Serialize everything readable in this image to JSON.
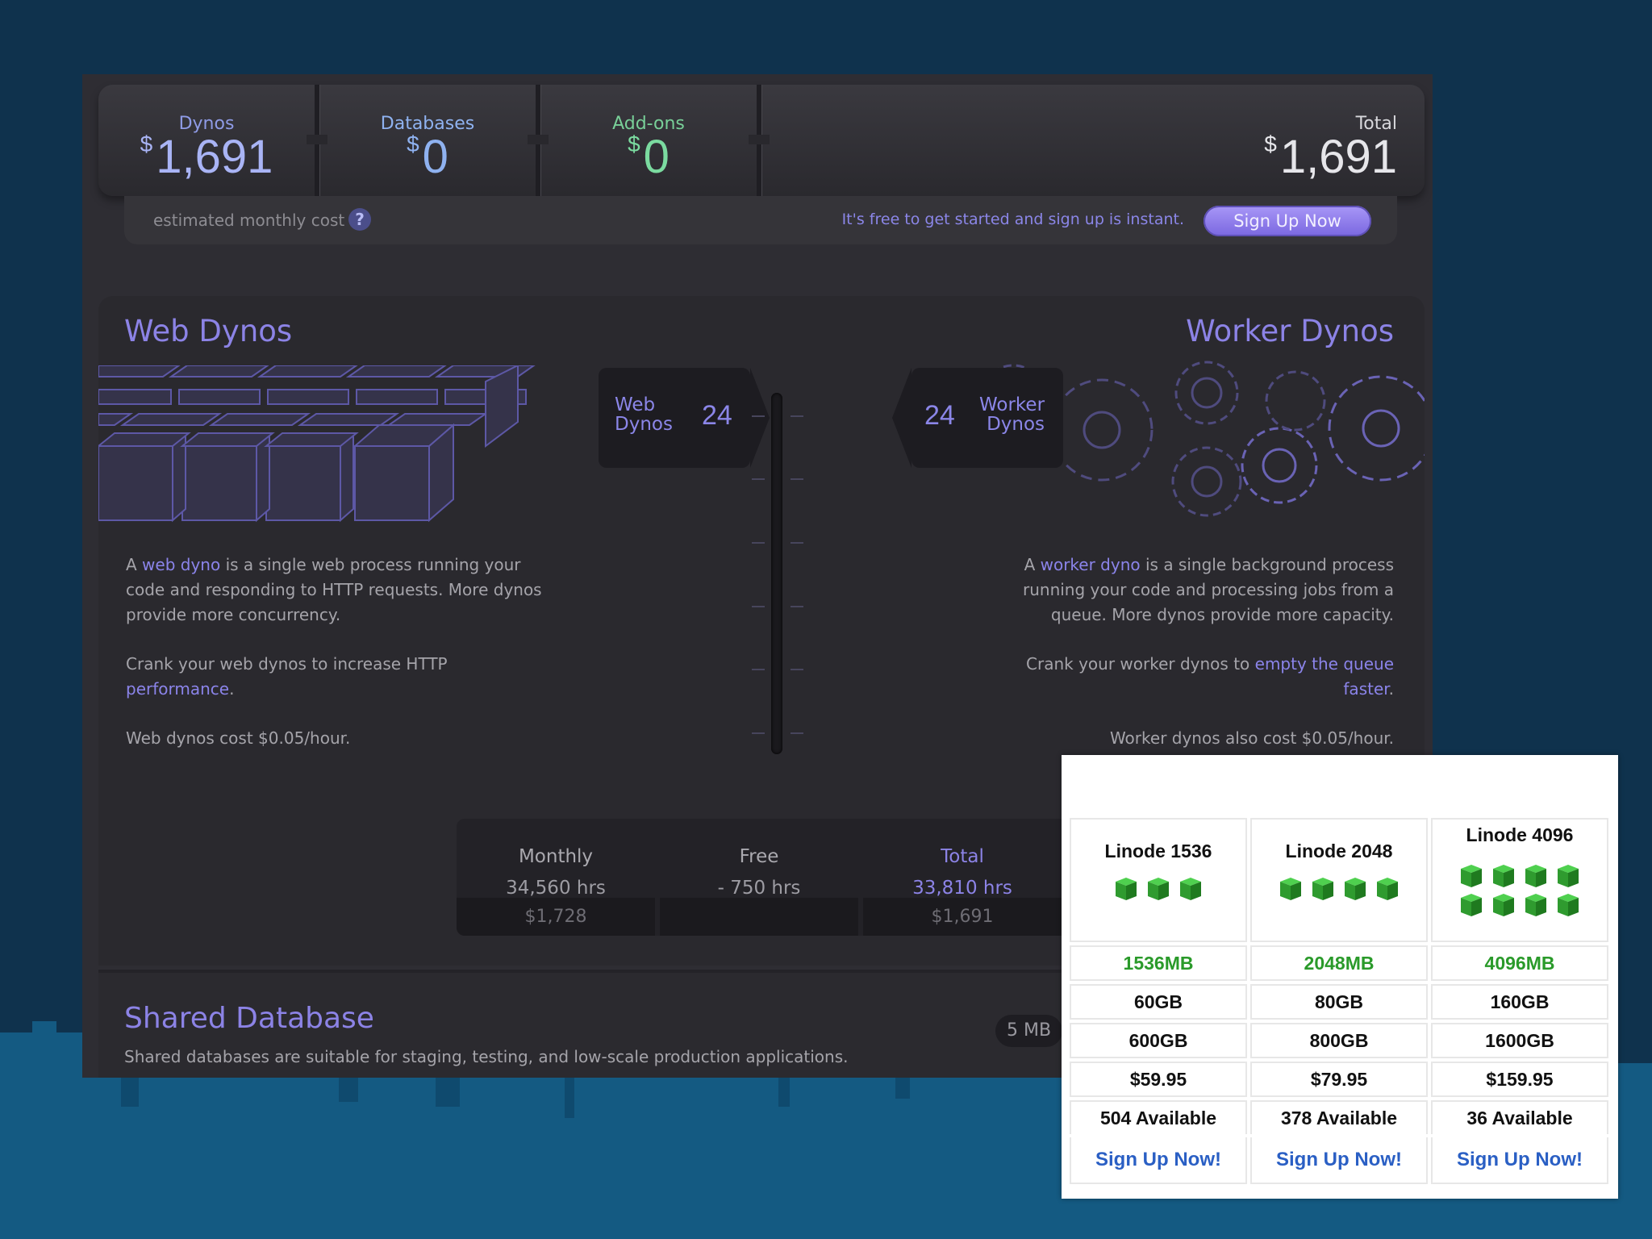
{
  "cost_bar": {
    "dynos": {
      "label": "Dynos",
      "currency": "$",
      "value": "1,691"
    },
    "databases": {
      "label": "Databases",
      "currency": "$",
      "value": "0"
    },
    "addons": {
      "label": "Add-ons",
      "currency": "$",
      "value": "0"
    },
    "total": {
      "label": "Total",
      "currency": "$",
      "value": "1,691"
    },
    "estimated_label": "estimated monthly cost",
    "help_glyph": "?",
    "free_text": "It's free to get started and sign up is instant.",
    "signup_label": "Sign Up Now"
  },
  "web": {
    "title": "Web Dynos",
    "box_label_1": "Web",
    "box_label_2": "Dynos",
    "count": "24",
    "p1_a": "A ",
    "p1_link": "web dyno",
    "p1_b": " is a single web process running your code and responding to HTTP requests. More dynos provide more concurrency.",
    "p2_a": "Crank your web dynos to increase HTTP ",
    "p2_link": "performance",
    "p2_b": ".",
    "p3": "Web dynos cost $0.05/hour.",
    "illustration": "server-cubes-icon"
  },
  "worker": {
    "title": "Worker Dynos",
    "box_label_1": "Worker",
    "box_label_2": "Dynos",
    "count": "24",
    "p1_a": "A ",
    "p1_link": "worker dyno",
    "p1_b": " is a single background process running your code and processing jobs from a queue. More dynos provide more capacity.",
    "p2_a": "Crank your worker dynos to ",
    "p2_link": "empty the queue faster",
    "p2_b": ".",
    "p3": "Worker dynos also cost $0.05/hour.",
    "illustration": "gears-icon"
  },
  "hours": {
    "monthly": {
      "label": "Monthly",
      "hrs": "34,560 hrs",
      "cost": "$1,728"
    },
    "free": {
      "label": "Free",
      "hrs": "- 750 hrs",
      "cost": ""
    },
    "total": {
      "label": "Total",
      "hrs": "33,810 hrs",
      "cost": "$1,691"
    }
  },
  "shared_db": {
    "title": "Shared Database",
    "desc": "Shared databases are suitable for staging, testing, and low-scale production applications.",
    "size": "5 MB"
  },
  "linode": {
    "plans": [
      {
        "name": "Linode 1536",
        "cubes": 3,
        "ram": "1536MB",
        "disk": "60GB",
        "transfer": "600GB",
        "price": "$59.95",
        "available": "504 Available",
        "signup": "Sign Up Now!"
      },
      {
        "name": "Linode 2048",
        "cubes": 4,
        "ram": "2048MB",
        "disk": "80GB",
        "transfer": "800GB",
        "price": "$79.95",
        "available": "378 Available",
        "signup": "Sign Up Now!"
      },
      {
        "name": "Linode 4096",
        "cubes": 8,
        "ram": "4096MB",
        "disk": "160GB",
        "transfer": "1600GB",
        "price": "$159.95",
        "available": "36 Available",
        "signup": "Sign Up Now!"
      }
    ]
  },
  "colors": {
    "accent_purple": "#8c83e6",
    "dynos_blue": "#a9b4f5",
    "db_blue": "#8fb2f0",
    "addons_green": "#7bdba0",
    "linode_green": "#2a9a2a",
    "linode_link": "#2a5fc4"
  }
}
